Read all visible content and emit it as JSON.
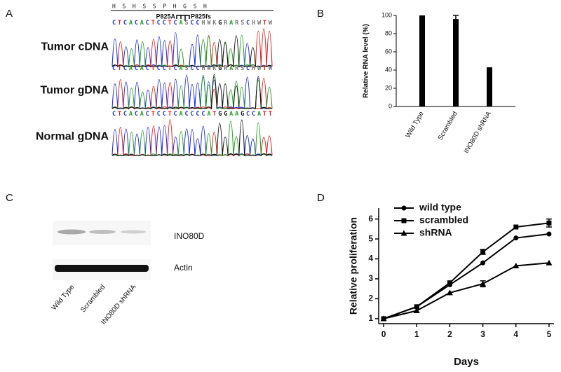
{
  "panel_labels": [
    "A",
    "B",
    "C",
    "D"
  ],
  "sequencing": {
    "amino_acids": "H  S  H  S  S  P  H  G  S  H",
    "mutations": [
      "P825A",
      "P825fs"
    ],
    "rows": [
      {
        "label": "Tumor cDNA",
        "sequence": "CTCACACTCCTCASCCHWKGRARSCHWTW"
      },
      {
        "label": "Tumor gDNA",
        "sequence": "CTCACACTCCTCASCCHWKGRARSCHWTW"
      },
      {
        "label": "Normal gDNA",
        "sequence": "CTCACACTCCTCACCCCATGGAAGCCATT"
      }
    ]
  },
  "blot": {
    "bands": [
      "INO80D",
      "Actin"
    ],
    "lanes": [
      "Wild Type",
      "Scrambled",
      "INO80D shRNA"
    ]
  },
  "chart_data": [
    {
      "type": "bar",
      "y_label": "Relative RNA level (%)",
      "categories": [
        "Wild Type",
        "Scrambled",
        "INO80D shRNA"
      ],
      "values": [
        100,
        96,
        43
      ],
      "errors": [
        null,
        4,
        null
      ],
      "color": "#000000",
      "ylim": [
        0,
        100
      ],
      "yticks": [
        0,
        20,
        40,
        60,
        80,
        100
      ]
    },
    {
      "type": "line",
      "x_label": "Days",
      "y_label": "Relative proliferation",
      "x": [
        0,
        1,
        2,
        3,
        4,
        5
      ],
      "series": [
        {
          "name": "wild type",
          "color": "#000000",
          "marker": "circle",
          "values": [
            1,
            1.6,
            2.7,
            3.8,
            5.05,
            5.25
          ],
          "errors": [
            null,
            null,
            null,
            null,
            null,
            null
          ]
        },
        {
          "name": "scrambled",
          "color": "#000000",
          "marker": "square",
          "values": [
            1,
            1.6,
            2.8,
            4.35,
            5.6,
            5.8
          ],
          "errors": [
            null,
            null,
            null,
            0.12,
            null,
            0.2
          ]
        },
        {
          "name": "shRNA",
          "color": "#000000",
          "marker": "triangle",
          "values": [
            1,
            1.4,
            2.3,
            2.75,
            3.65,
            3.8
          ],
          "errors": [
            null,
            null,
            null,
            0.15,
            null,
            null
          ]
        }
      ],
      "xlim": [
        -0.15,
        5.15
      ],
      "ylim": [
        0.75,
        6.55
      ],
      "xticks": [
        0,
        1,
        2,
        3,
        4,
        5
      ],
      "yticks": [
        1,
        2,
        3,
        4,
        5,
        6
      ],
      "legend": "top-left"
    }
  ]
}
